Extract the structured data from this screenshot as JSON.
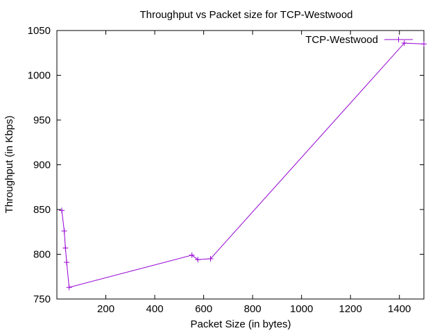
{
  "chart_data": {
    "type": "line",
    "title": "Throughput vs Packet size for TCP-Westwood",
    "xlabel": "Packet Size (in bytes)",
    "ylabel": "Throughput (in Kbps)",
    "xlim": [
      0,
      1500
    ],
    "ylim": [
      750,
      1050
    ],
    "xticks": [
      200,
      400,
      600,
      800,
      1000,
      1200,
      1400
    ],
    "yticks": [
      750,
      800,
      850,
      900,
      950,
      1000,
      1050
    ],
    "grid": false,
    "legend_position": "top-right",
    "series": [
      {
        "name": "TCP-Westwood",
        "color": "#9400d3",
        "marker": "plus",
        "x": [
          20,
          30,
          35,
          40,
          50,
          552,
          576,
          628,
          1420,
          1500
        ],
        "y": [
          849,
          826,
          807,
          791,
          763,
          799,
          794,
          795,
          1036,
          1035
        ]
      }
    ]
  }
}
